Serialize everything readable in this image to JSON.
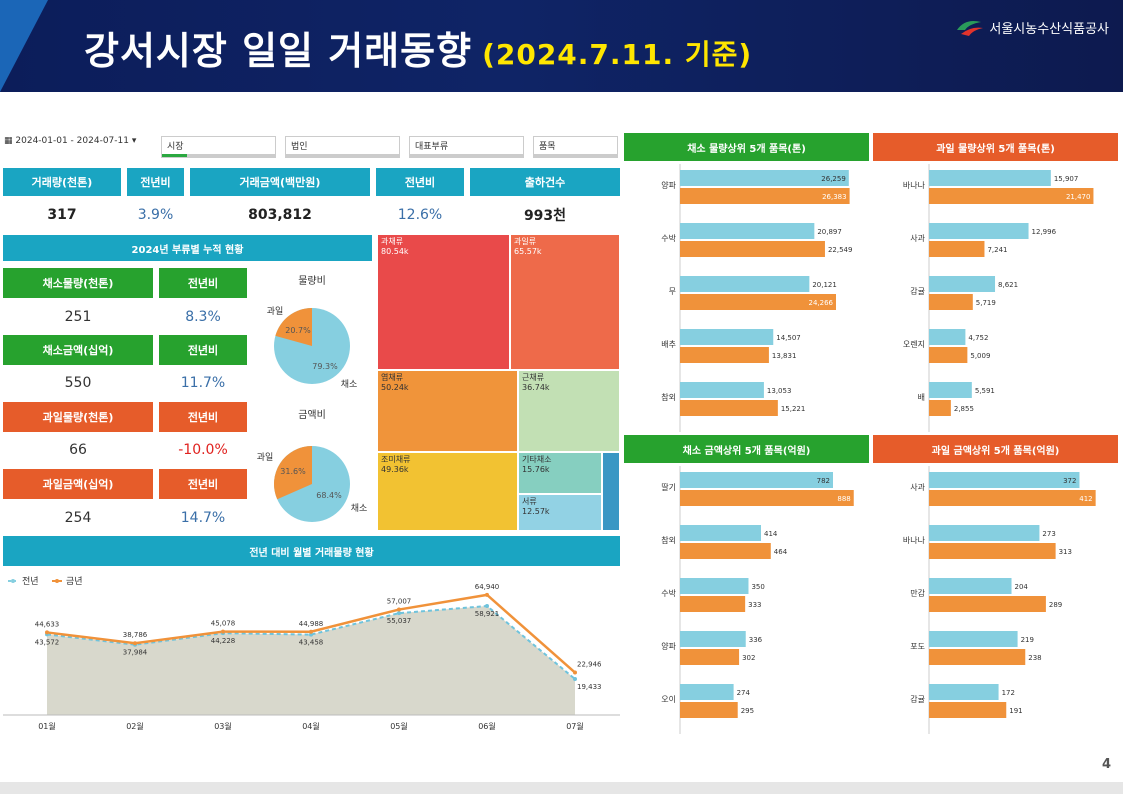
{
  "header": {
    "title": "강서시장 일일 거래동향",
    "date": "(2024.7.11. 기준)",
    "org": "서울시농수산식품공사"
  },
  "page_number": "4",
  "filters": {
    "date_range": "2024-01-01 - 2024-07-11",
    "market": "시장",
    "corp": "법인",
    "category": "대표부류",
    "item": "품목"
  },
  "kpi": {
    "headers": [
      "거래량(천톤)",
      "전년비",
      "거래금액(백만원)",
      "전년비",
      "출하건수"
    ],
    "values": [
      "317",
      "3.9%",
      "803,812",
      "12.6%",
      "993천"
    ]
  },
  "cumulative": {
    "title": "2024년 부류별 누적 현황",
    "rows": [
      {
        "label": "채소물량(천톤)",
        "yoy_label": "전년비",
        "value": "251",
        "yoy": "8.3%"
      },
      {
        "label": "채소금액(십억)",
        "yoy_label": "전년비",
        "value": "550",
        "yoy": "11.7%"
      },
      {
        "label": "과일물량(천톤)",
        "yoy_label": "전년비",
        "value": "66",
        "yoy": "-10.0%"
      },
      {
        "label": "과일금액(십억)",
        "yoy_label": "전년비",
        "value": "254",
        "yoy": "14.7%"
      }
    ],
    "pie_volume": {
      "title": "물량비",
      "fruit_label": "과일",
      "veg_label": "채소",
      "fruit_pct": "20.7%",
      "veg_pct": "79.3%",
      "fruit": 20.7,
      "veg": 79.3
    },
    "pie_amount": {
      "title": "금액비",
      "fruit_label": "과일",
      "veg_label": "채소",
      "fruit_pct": "31.6%",
      "veg_pct": "68.4%",
      "fruit": 31.6,
      "veg": 68.4
    }
  },
  "treemap": [
    {
      "name": "과채류",
      "value": "80.54k",
      "color": "#e94a4a"
    },
    {
      "name": "과일류",
      "value": "65.57k",
      "color": "#ee6a4a"
    },
    {
      "name": "엽채류",
      "value": "50.24k",
      "color": "#f0943a"
    },
    {
      "name": "근채류",
      "value": "36.74k",
      "color": "#c2e0b4"
    },
    {
      "name": "조미채류",
      "value": "49.36k",
      "color": "#f2c232"
    },
    {
      "name": "기타채소",
      "value": "15.76k",
      "color": "#86cfc0"
    },
    {
      "name": "서류",
      "value": "12.57k",
      "color": "#92d2e4"
    }
  ],
  "colors": {
    "prev": "#86cfe0",
    "curr": "#f0923a",
    "teal": "#1aa5c2",
    "green": "#27a22e",
    "orange": "#e65c2a"
  },
  "line_chart": {
    "title": "전년 대비 월별 거래물량 현황",
    "legend_prev": "전년",
    "legend_curr": "금년"
  },
  "chart_data": [
    {
      "type": "line",
      "categories": [
        "01월",
        "02월",
        "03월",
        "04월",
        "05월",
        "06월",
        "07월"
      ],
      "series": [
        {
          "name": "전년",
          "values": [
            43572,
            37984,
            44228,
            43458,
            55037,
            58921,
            19433
          ]
        },
        {
          "name": "금년",
          "values": [
            44633,
            38786,
            45078,
            44988,
            57007,
            64940,
            22946
          ]
        }
      ]
    },
    {
      "type": "bar",
      "title": "채소 물량상위 5개 품목(톤)",
      "categories": [
        "양파",
        "수박",
        "무",
        "배추",
        "참외"
      ],
      "series": [
        {
          "name": "전년",
          "values": [
            26259,
            20897,
            20121,
            14507,
            13053
          ]
        },
        {
          "name": "금년",
          "values": [
            26383,
            22549,
            24266,
            13831,
            15221
          ]
        }
      ]
    },
    {
      "type": "bar",
      "title": "과일 물량상위 5개 품목(톤)",
      "categories": [
        "바나나",
        "사과",
        "감귤",
        "오렌지",
        "배"
      ],
      "series": [
        {
          "name": "전년",
          "values": [
            15907,
            12996,
            8621,
            4752,
            5591
          ]
        },
        {
          "name": "금년",
          "values": [
            21470,
            7241,
            5719,
            5009,
            2855
          ]
        }
      ]
    },
    {
      "type": "bar",
      "title": "채소 금액상위 5개 품목(억원)",
      "categories": [
        "딸기",
        "참외",
        "수박",
        "양파",
        "오이"
      ],
      "series": [
        {
          "name": "전년",
          "values": [
            782,
            414,
            350,
            336,
            274
          ]
        },
        {
          "name": "금년",
          "values": [
            888,
            464,
            333,
            302,
            295
          ]
        }
      ]
    },
    {
      "type": "bar",
      "title": "과일 금액상위 5개 품목(억원)",
      "categories": [
        "사과",
        "바나나",
        "만감",
        "포도",
        "감귤"
      ],
      "series": [
        {
          "name": "전년",
          "values": [
            372,
            273,
            204,
            219,
            172
          ]
        },
        {
          "name": "금년",
          "values": [
            412,
            313,
            289,
            238,
            191
          ]
        }
      ]
    }
  ]
}
